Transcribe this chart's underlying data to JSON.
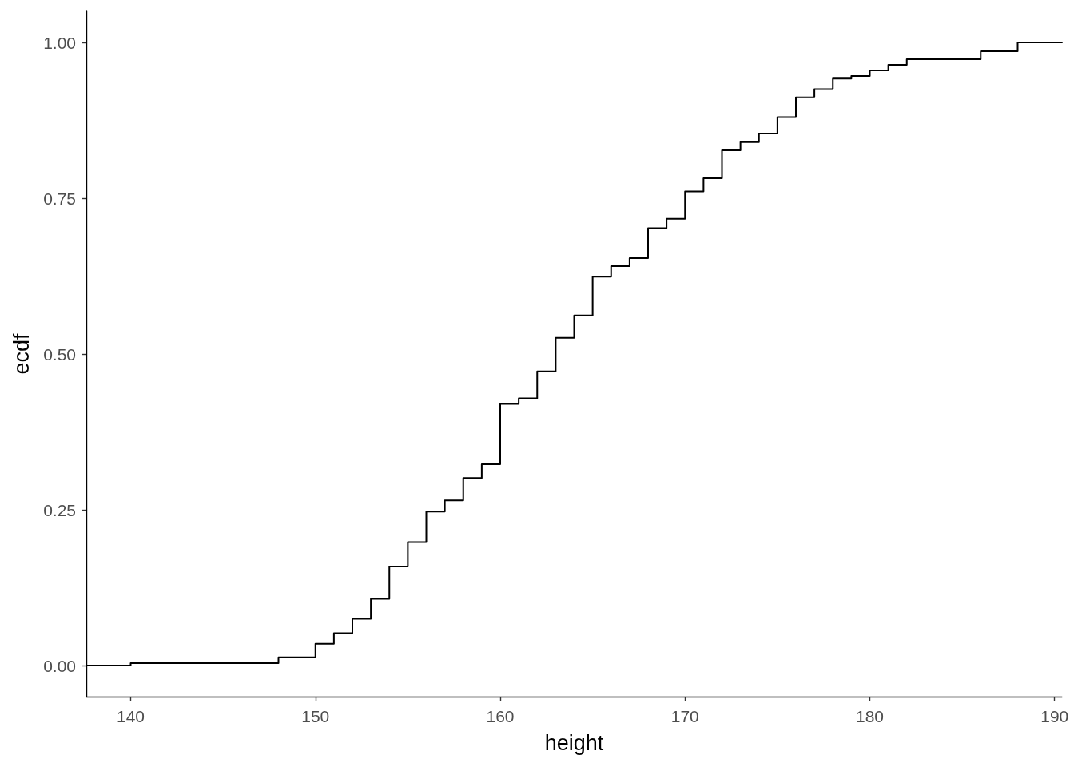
{
  "chart_data": {
    "type": "step",
    "xlabel": "height",
    "ylabel": "ecdf",
    "x": [
      137.6,
      140,
      148,
      150,
      151,
      152,
      153,
      154,
      155,
      156,
      157,
      158,
      159,
      160,
      161,
      162,
      163,
      164,
      165,
      166,
      167,
      168,
      169,
      170,
      171,
      172,
      173,
      174,
      175,
      176,
      177,
      178,
      179,
      180,
      181,
      182,
      186,
      188,
      190.4
    ],
    "values": [
      0,
      0.004,
      0.013,
      0.035,
      0.052,
      0.075,
      0.107,
      0.159,
      0.198,
      0.247,
      0.265,
      0.301,
      0.323,
      0.42,
      0.429,
      0.472,
      0.526,
      0.562,
      0.624,
      0.641,
      0.654,
      0.702,
      0.717,
      0.761,
      0.782,
      0.827,
      0.84,
      0.854,
      0.88,
      0.912,
      0.925,
      0.942,
      0.946,
      0.955,
      0.964,
      0.973,
      0.986,
      1,
      1
    ],
    "color": "#000000",
    "xlim": [
      137.6,
      190.4
    ],
    "xticks": [
      140,
      150,
      160,
      170,
      180,
      190
    ],
    "ylim": [
      -0.05,
      1.05
    ],
    "yticks": [
      {
        "value": 0,
        "label": "0.00"
      },
      {
        "value": 0.25,
        "label": "0.25"
      },
      {
        "value": 0.5,
        "label": "0.50"
      },
      {
        "value": 0.75,
        "label": "0.75"
      },
      {
        "value": 1,
        "label": "1.00"
      }
    ],
    "grid": false,
    "marker": "none",
    "line_style": "solid"
  }
}
